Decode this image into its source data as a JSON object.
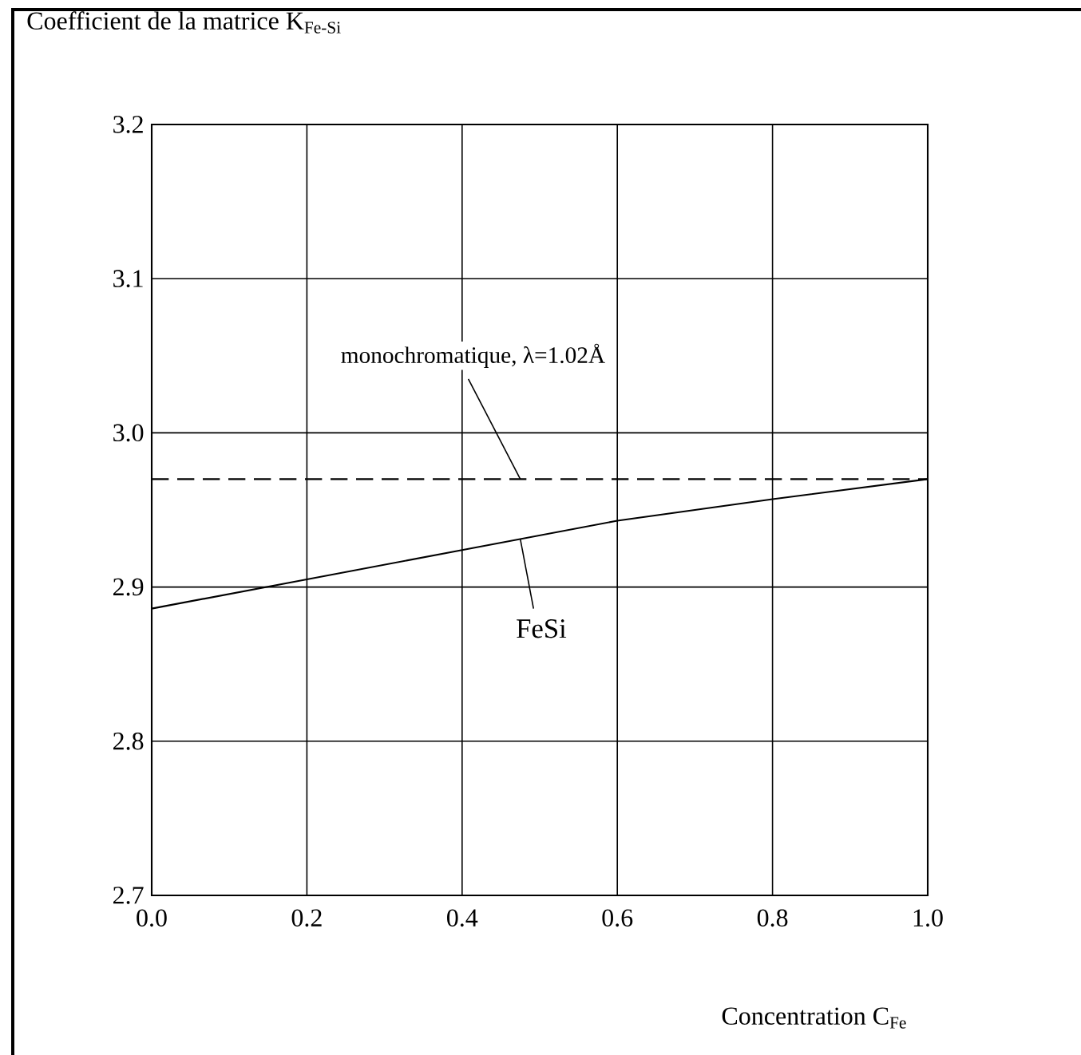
{
  "chart_data": {
    "type": "line",
    "title": "Coefficient de la matrice K$_{Fe-Si}$",
    "xlabel": "Concentration C$_{Fe}$",
    "x": [
      0,
      0.2,
      0.4,
      0.6,
      0.8,
      1.0
    ],
    "series": [
      {
        "name": "FeSi",
        "color": "#000000",
        "values": [
          2.886,
          2.905,
          2.924,
          2.943,
          2.957,
          2.97
        ]
      }
    ],
    "ref_lines": [
      {
        "axis": "y",
        "value": 2.97,
        "line_style": "dashed",
        "color": "#000000"
      }
    ],
    "annotations": [
      {
        "text": "monochromatique, λ=1.02Å",
        "x": 0.475,
        "y": 2.97
      }
    ],
    "xlim": [
      0,
      1.0
    ],
    "ylim": [
      2.7,
      3.2
    ],
    "xticks": [
      {
        "value": 0,
        "label": "0.0"
      },
      0.2,
      0.4,
      0.6,
      0.8,
      {
        "value": 1.0,
        "label": "1.0"
      }
    ],
    "yticks": [
      2.7,
      2.8,
      2.9,
      {
        "value": 3.0,
        "label": "3.0"
      },
      3.1,
      3.2
    ],
    "grid": true,
    "marker": "none",
    "line_style": "solid"
  }
}
